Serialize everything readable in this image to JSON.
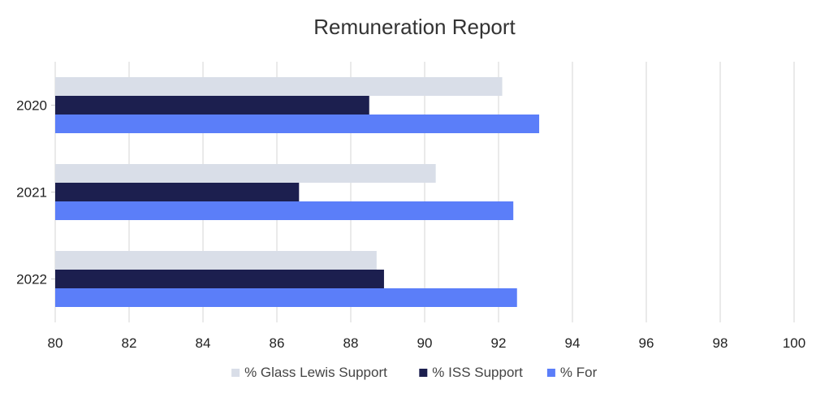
{
  "chart_data": {
    "type": "bar",
    "orientation": "horizontal",
    "title": "Remuneration Report",
    "xlabel": "",
    "ylabel": "",
    "categories": [
      "2020",
      "2021",
      "2022"
    ],
    "series": [
      {
        "name": "% Glass Lewis Support",
        "color": "#d9dee8",
        "values": [
          92.1,
          90.3,
          88.7
        ]
      },
      {
        "name": "% ISS Support",
        "color": "#1c1f4f",
        "values": [
          88.5,
          86.6,
          88.9
        ]
      },
      {
        "name": "% For",
        "color": "#5b7ef9",
        "values": [
          93.1,
          92.4,
          92.5
        ]
      }
    ],
    "xlim": [
      80,
      100
    ],
    "xticks": [
      "80",
      "82",
      "84",
      "86",
      "88",
      "90",
      "92",
      "94",
      "96",
      "98",
      "100"
    ],
    "grid": "vertical",
    "legend": "bottom"
  }
}
